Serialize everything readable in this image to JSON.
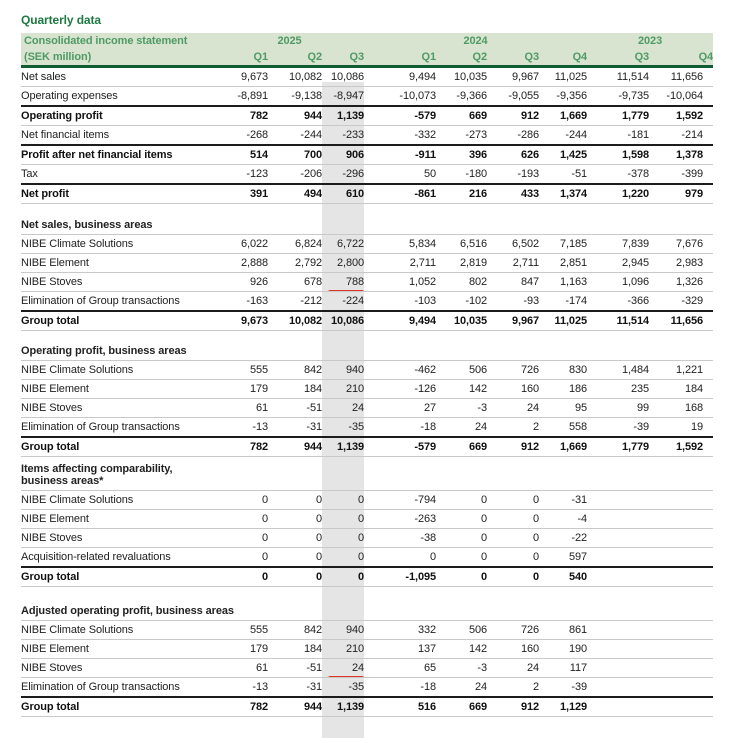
{
  "page_title": "Quarterly data",
  "header": {
    "title": "Consolidated income statement",
    "unit_label": "(SEK million)",
    "year_groups": [
      {
        "year": "2025",
        "quarters": [
          "Q1",
          "Q2",
          "Q3"
        ]
      },
      {
        "year": "2024",
        "quarters": [
          "Q1",
          "Q2",
          "Q3",
          "Q4"
        ]
      },
      {
        "year": "2023",
        "quarters": [
          "Q3",
          "Q4"
        ]
      }
    ]
  },
  "highlight": {
    "column": "Q3 2025",
    "column_index": 2,
    "style": "gray-vertical-band"
  },
  "annotations": [
    {
      "section_heading": "Net sales, business areas",
      "row": "NIBE Stoves",
      "column": "Q3 2025",
      "value": "788",
      "type": "red-underline"
    },
    {
      "section_heading": "Adjusted operating profit, business areas",
      "row": "NIBE Stoves",
      "column": "Q3 2025",
      "value": "24",
      "type": "red-underline"
    }
  ],
  "sections": [
    {
      "heading_lines": [],
      "rows": [
        {
          "label": "Net sales",
          "bold": false,
          "values": [
            "9,673",
            "10,082",
            "10,086",
            "9,494",
            "10,035",
            "9,967",
            "11,025",
            "11,514",
            "11,656"
          ]
        },
        {
          "label": "Operating expenses",
          "bold": false,
          "values": [
            "-8,891",
            "-9,138",
            "-8,947",
            "-10,073",
            "-9,366",
            "-9,055",
            "-9,356",
            "-9,735",
            "-10,064"
          ]
        },
        {
          "label": "Operating profit",
          "bold": true,
          "values": [
            "782",
            "944",
            "1,139",
            "-579",
            "669",
            "912",
            "1,669",
            "1,779",
            "1,592"
          ]
        },
        {
          "label": "Net financial items",
          "bold": false,
          "values": [
            "-268",
            "-244",
            "-233",
            "-332",
            "-273",
            "-286",
            "-244",
            "-181",
            "-214"
          ]
        },
        {
          "label": "Profit after net financial items",
          "bold": true,
          "values": [
            "514",
            "700",
            "906",
            "-911",
            "396",
            "626",
            "1,425",
            "1,598",
            "1,378"
          ]
        },
        {
          "label": "Tax",
          "bold": false,
          "values": [
            "-123",
            "-206",
            "-296",
            "50",
            "-180",
            "-193",
            "-51",
            "-378",
            "-399"
          ]
        },
        {
          "label": "Net profit",
          "bold": true,
          "values": [
            "391",
            "494",
            "610",
            "-861",
            "216",
            "433",
            "1,374",
            "1,220",
            "979"
          ]
        }
      ]
    },
    {
      "heading_lines": [
        "Net sales, business areas"
      ],
      "rows": [
        {
          "label": "NIBE Climate Solutions",
          "bold": false,
          "values": [
            "6,022",
            "6,824",
            "6,722",
            "5,834",
            "6,516",
            "6,502",
            "7,185",
            "7,839",
            "7,676"
          ]
        },
        {
          "label": "NIBE Element",
          "bold": false,
          "values": [
            "2,888",
            "2,792",
            "2,800",
            "2,711",
            "2,819",
            "2,711",
            "2,851",
            "2,945",
            "2,983"
          ]
        },
        {
          "label": "NIBE Stoves",
          "bold": false,
          "values": [
            "926",
            "678",
            "788",
            "1,052",
            "802",
            "847",
            "1,163",
            "1,096",
            "1,326"
          ],
          "red_underline_col": 2
        },
        {
          "label": "Elimination of Group transactions",
          "bold": false,
          "values": [
            "-163",
            "-212",
            "-224",
            "-103",
            "-102",
            "-93",
            "-174",
            "-366",
            "-329"
          ]
        },
        {
          "label": "Group total",
          "bold": true,
          "values": [
            "9,673",
            "10,082",
            "10,086",
            "9,494",
            "10,035",
            "9,967",
            "11,025",
            "11,514",
            "11,656"
          ]
        }
      ]
    },
    {
      "heading_lines": [
        "Operating profit, business areas"
      ],
      "rows": [
        {
          "label": "NIBE Climate Solutions",
          "bold": false,
          "values": [
            "555",
            "842",
            "940",
            "-462",
            "506",
            "726",
            "830",
            "1,484",
            "1,221"
          ]
        },
        {
          "label": "NIBE Element",
          "bold": false,
          "values": [
            "179",
            "184",
            "210",
            "-126",
            "142",
            "160",
            "186",
            "235",
            "184"
          ]
        },
        {
          "label": "NIBE Stoves",
          "bold": false,
          "values": [
            "61",
            "-51",
            "24",
            "27",
            "-3",
            "24",
            "95",
            "99",
            "168"
          ]
        },
        {
          "label": "Elimination of Group transactions",
          "bold": false,
          "values": [
            "-13",
            "-31",
            "-35",
            "-18",
            "24",
            "2",
            "558",
            "-39",
            "19"
          ]
        },
        {
          "label": "Group total",
          "bold": true,
          "values": [
            "782",
            "944",
            "1,139",
            "-579",
            "669",
            "912",
            "1,669",
            "1,779",
            "1,592"
          ]
        }
      ]
    },
    {
      "heading_lines": [
        "Items affecting comparability,",
        "business areas*"
      ],
      "rows": [
        {
          "label": "NIBE Climate Solutions",
          "bold": false,
          "values": [
            "0",
            "0",
            "0",
            "-794",
            "0",
            "0",
            "-31",
            "",
            ""
          ]
        },
        {
          "label": "NIBE Element",
          "bold": false,
          "values": [
            "0",
            "0",
            "0",
            "-263",
            "0",
            "0",
            "-4",
            "",
            ""
          ]
        },
        {
          "label": "NIBE Stoves",
          "bold": false,
          "values": [
            "0",
            "0",
            "0",
            "-38",
            "0",
            "0",
            "-22",
            "",
            ""
          ]
        },
        {
          "label": "Acquisition-related revaluations",
          "bold": false,
          "values": [
            "0",
            "0",
            "0",
            "0",
            "0",
            "0",
            "597",
            "",
            ""
          ]
        },
        {
          "label": "Group total",
          "bold": true,
          "values": [
            "0",
            "0",
            "0",
            "-1,095",
            "0",
            "0",
            "540",
            "",
            ""
          ]
        }
      ]
    },
    {
      "heading_lines": [
        "Adjusted operating profit, business areas"
      ],
      "rows": [
        {
          "label": "NIBE Climate Solutions",
          "bold": false,
          "values": [
            "555",
            "842",
            "940",
            "332",
            "506",
            "726",
            "861",
            "",
            ""
          ]
        },
        {
          "label": "NIBE Element",
          "bold": false,
          "values": [
            "179",
            "184",
            "210",
            "137",
            "142",
            "160",
            "190",
            "",
            ""
          ]
        },
        {
          "label": "NIBE Stoves",
          "bold": false,
          "values": [
            "61",
            "-51",
            "24",
            "65",
            "-3",
            "24",
            "117",
            "",
            ""
          ],
          "red_underline_col": 2
        },
        {
          "label": "Elimination of Group transactions",
          "bold": false,
          "values": [
            "-13",
            "-31",
            "-35",
            "-18",
            "24",
            "2",
            "-39",
            "",
            ""
          ]
        },
        {
          "label": "Group total",
          "bold": true,
          "values": [
            "782",
            "944",
            "1,139",
            "516",
            "669",
            "912",
            "1,129",
            "",
            ""
          ]
        }
      ]
    }
  ],
  "colors": {
    "title_green": "#1e7a42",
    "band_bg": "#d8e4d0",
    "band_text": "#4f9a64",
    "band_rule": "#115c33",
    "highlight_gray": "#e5e5e5",
    "annotation_red": "#e0352b",
    "row_border": "#c9c9c9",
    "strong_border": "#1c1c1c",
    "text": "#222222"
  }
}
